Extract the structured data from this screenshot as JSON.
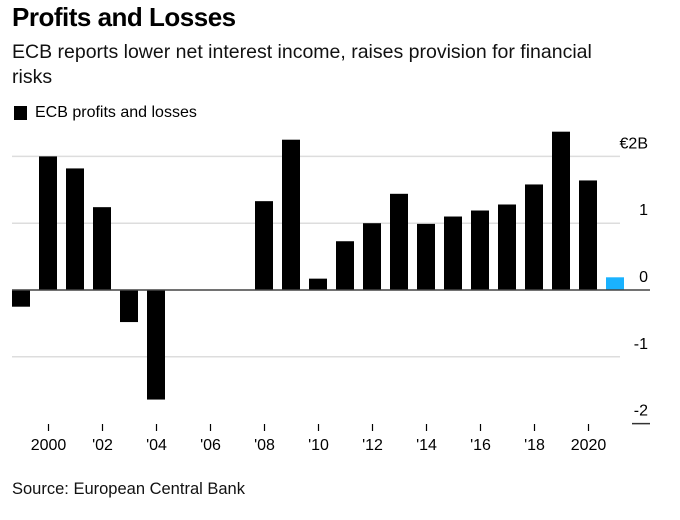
{
  "header": {
    "title": "Profits and Losses",
    "subtitle": "ECB reports lower net interest income, raises provision for financial risks"
  },
  "legend": {
    "label": "ECB profits and losses",
    "color": "#000000"
  },
  "source": "Source: European Central Bank",
  "chart_data": {
    "type": "bar",
    "title": "Profits and Losses",
    "subtitle": "ECB reports lower net interest income, raises provision for financial risks",
    "xlabel": "",
    "ylabel": "",
    "ylim": [
      -2,
      2
    ],
    "yticks": [
      2,
      1,
      0,
      -1,
      -2
    ],
    "ytick_labels": [
      "€2B",
      "1",
      "0",
      "-1",
      "-2"
    ],
    "xtick_years": [
      2000,
      2002,
      2004,
      2006,
      2008,
      2010,
      2012,
      2014,
      2016,
      2018,
      2020
    ],
    "xtick_labels": [
      "2000",
      "'02",
      "'04",
      "'06",
      "'08",
      "'10",
      "'12",
      "'14",
      "'16",
      "'18",
      "2020"
    ],
    "grid": true,
    "legend_position": "top-left",
    "categories": [
      1999,
      2000,
      2001,
      2002,
      2003,
      2004,
      2005,
      2006,
      2007,
      2008,
      2009,
      2010,
      2011,
      2012,
      2013,
      2014,
      2015,
      2016,
      2017,
      2018,
      2019,
      2020,
      2021
    ],
    "series": [
      {
        "name": "ECB profits and losses",
        "unit": "EUR billions",
        "values": [
          -0.25,
          2.0,
          1.82,
          1.24,
          -0.48,
          -1.64,
          0.0,
          0.0,
          0.0,
          1.33,
          2.25,
          0.17,
          0.73,
          1.0,
          1.44,
          0.99,
          1.1,
          1.19,
          1.28,
          1.58,
          2.37,
          1.64,
          0.19
        ],
        "colors": [
          "#000000",
          "#000000",
          "#000000",
          "#000000",
          "#000000",
          "#000000",
          "#000000",
          "#000000",
          "#000000",
          "#000000",
          "#000000",
          "#000000",
          "#000000",
          "#000000",
          "#000000",
          "#000000",
          "#000000",
          "#000000",
          "#000000",
          "#000000",
          "#000000",
          "#000000",
          "#1ab2ff"
        ]
      }
    ],
    "highlight_color": "#1ab2ff",
    "grid_color": "#dddddd",
    "zero_line_color": "#444444"
  }
}
